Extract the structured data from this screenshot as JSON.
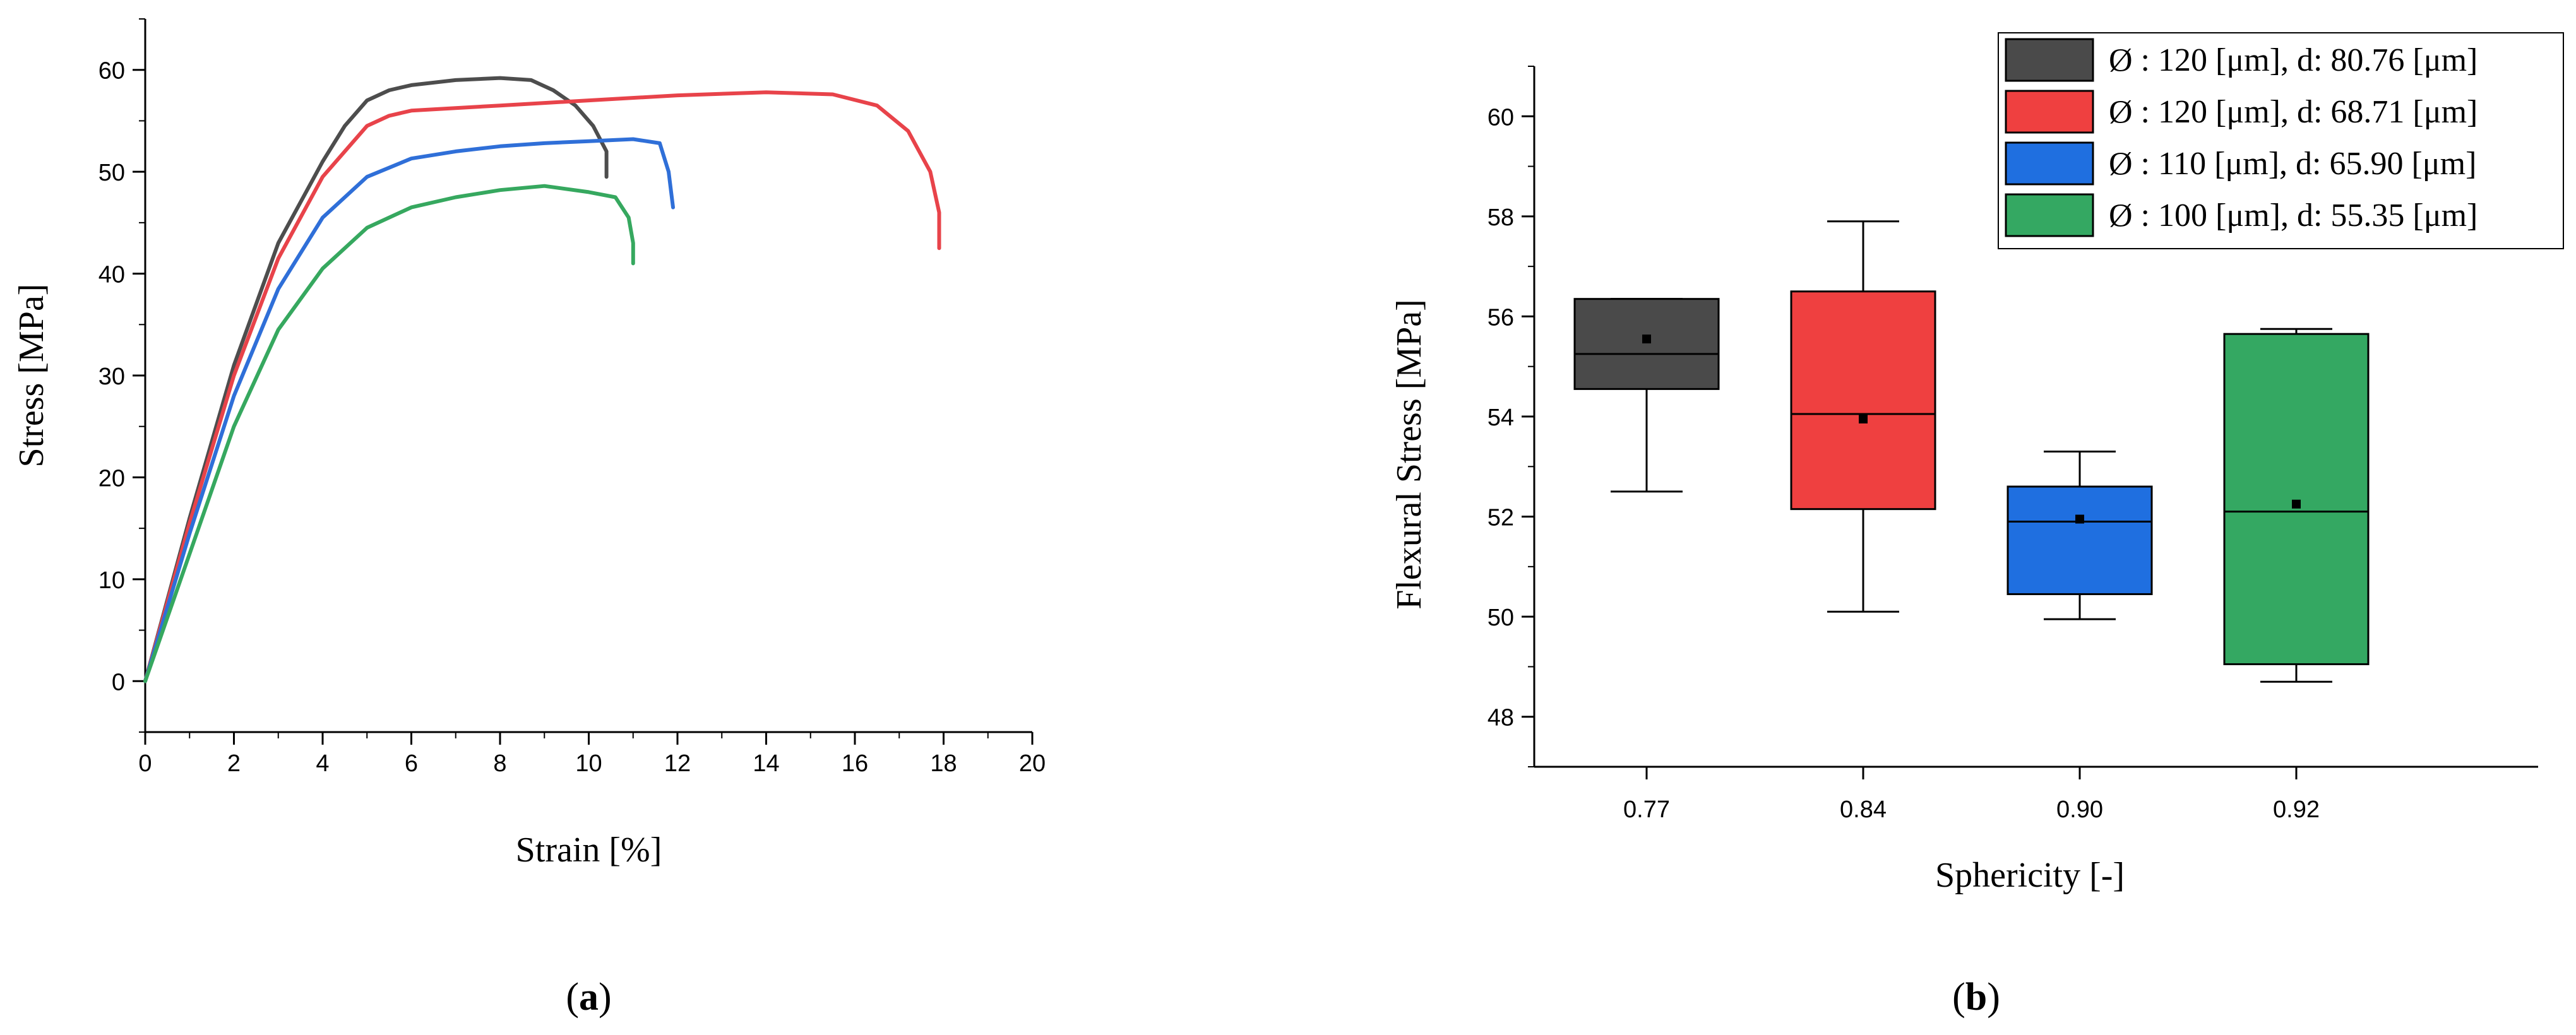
{
  "chart_data": [
    {
      "type": "line",
      "panel_label": "a",
      "xlabel": "Strain [%]",
      "ylabel": "Stress [MPa]",
      "xlim": [
        0,
        20
      ],
      "ylim": [
        -5,
        65
      ],
      "xticks": [
        0,
        2,
        4,
        6,
        8,
        10,
        12,
        14,
        16,
        18,
        20
      ],
      "yticks": [
        0,
        10,
        20,
        30,
        40,
        50,
        60
      ],
      "grid": false,
      "series": [
        {
          "color": "#4d4d4d",
          "x": [
            0,
            1,
            2,
            3,
            4,
            4.5,
            5,
            5.5,
            6,
            7,
            8,
            8.7,
            9.2,
            9.7,
            10.1,
            10.4,
            10.4
          ],
          "y": [
            0,
            16,
            31,
            43,
            51,
            54.5,
            57,
            58,
            58.5,
            59,
            59.2,
            59,
            58,
            56.5,
            54.5,
            52,
            49.5
          ]
        },
        {
          "color": "#e8434a",
          "x": [
            0,
            1,
            2,
            3,
            4,
            5,
            5.5,
            6,
            8,
            10,
            12,
            14,
            15.5,
            16.5,
            17.2,
            17.7,
            17.9,
            17.9
          ],
          "y": [
            0,
            15.5,
            30,
            41.5,
            49.5,
            54.5,
            55.5,
            56,
            56.5,
            57,
            57.5,
            57.8,
            57.6,
            56.5,
            54,
            50,
            46,
            42.5
          ]
        },
        {
          "color": "#2f6fd8",
          "x": [
            0,
            1,
            2,
            3,
            4,
            5,
            6,
            7,
            8,
            9,
            10,
            11,
            11.6,
            11.8,
            11.9
          ],
          "y": [
            0,
            14.5,
            28,
            38.5,
            45.5,
            49.5,
            51.3,
            52,
            52.5,
            52.8,
            53,
            53.2,
            52.8,
            50,
            46.5
          ]
        },
        {
          "color": "#36a85f",
          "x": [
            0,
            1,
            2,
            3,
            4,
            5,
            6,
            7,
            8,
            9,
            10,
            10.6,
            10.9,
            11,
            11
          ],
          "y": [
            0,
            12.5,
            25,
            34.5,
            40.5,
            44.5,
            46.5,
            47.5,
            48.2,
            48.6,
            48,
            47.5,
            45.5,
            43,
            41
          ]
        }
      ]
    },
    {
      "type": "box",
      "panel_label": "b",
      "xlabel": "Sphericity [-]",
      "ylabel": "Flexural Stress [MPa]",
      "ylim": [
        47,
        61
      ],
      "yticks": [
        48,
        50,
        52,
        54,
        56,
        58,
        60
      ],
      "categories": [
        "0.77",
        "0.84",
        "0.90",
        "0.92"
      ],
      "legend_position": "top-right",
      "series": [
        {
          "name": "Ø : 120 [μm], d: 80.76 [μm]",
          "color": "#4a4a4a",
          "whisker_low": 52.5,
          "q1": 54.55,
          "median": 55.25,
          "q3": 56.35,
          "whisker_high": 56.35,
          "mean": 55.55
        },
        {
          "name": "Ø : 120 [μm], d: 68.71 [μm]",
          "color": "#ef4040",
          "whisker_low": 50.1,
          "q1": 52.15,
          "median": 54.05,
          "q3": 56.5,
          "whisker_high": 57.9,
          "mean": 53.95
        },
        {
          "name": "Ø : 110 [μm], d: 65.90 [μm]",
          "color": "#1f6fe0",
          "whisker_low": 49.95,
          "q1": 50.45,
          "median": 51.9,
          "q3": 52.6,
          "whisker_high": 53.3,
          "mean": 51.95
        },
        {
          "name": "Ø : 100 [μm], d: 55.35 [μm]",
          "color": "#34a862",
          "whisker_low": 48.7,
          "q1": 49.05,
          "median": 52.1,
          "q3": 55.65,
          "whisker_high": 55.75,
          "mean": 52.25
        }
      ]
    }
  ]
}
